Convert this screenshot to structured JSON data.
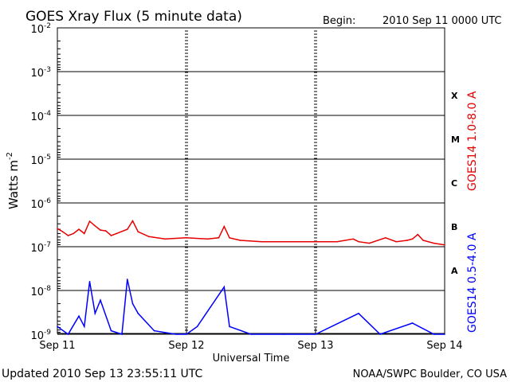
{
  "chart_data": {
    "type": "line",
    "title": "GOES Xray Flux (5 minute data)",
    "begin_label": "Begin:",
    "begin_value": "2010 Sep 11 0000 UTC",
    "xlabel": "Universal Time",
    "ylabel_main": "Watts m",
    "ylabel_exp": "-2",
    "y_scale": "log",
    "ylim": [
      8e-10,
      0.01
    ],
    "y_ticks": [
      {
        "exp": "-2",
        "value": 0.01
      },
      {
        "exp": "-3",
        "value": 0.001
      },
      {
        "exp": "-4",
        "value": 0.0001
      },
      {
        "exp": "-5",
        "value": 1e-05
      },
      {
        "exp": "-6",
        "value": 1e-06
      },
      {
        "exp": "-7",
        "value": 1e-07
      },
      {
        "exp": "-8",
        "value": 1e-08
      },
      {
        "exp": "-9",
        "value": 1e-09
      }
    ],
    "x_ticks": [
      "Sep 11",
      "Sep 12",
      "Sep 13",
      "Sep 14"
    ],
    "xlim": [
      "2010-09-11",
      "2010-09-14"
    ],
    "flare_classes": [
      {
        "label": "X",
        "value": 0.0003
      },
      {
        "label": "M",
        "value": 3e-05
      },
      {
        "label": "C",
        "value": 3e-06
      },
      {
        "label": "B",
        "value": 3e-07
      },
      {
        "label": "A",
        "value": 3e-08
      }
    ],
    "grid": true,
    "series": [
      {
        "name": "GOES14 1.0-8.0 A",
        "color": "#e60000",
        "points": [
          [
            "2010-09-11 00:00",
            2.6e-07
          ],
          [
            "2010-09-11 01:00",
            2.2e-07
          ],
          [
            "2010-09-11 02:00",
            1.8e-07
          ],
          [
            "2010-09-11 03:00",
            2e-07
          ],
          [
            "2010-09-11 04:00",
            2.5e-07
          ],
          [
            "2010-09-11 05:00",
            2e-07
          ],
          [
            "2010-09-11 06:00",
            3.8e-07
          ],
          [
            "2010-09-11 07:00",
            3e-07
          ],
          [
            "2010-09-11 08:00",
            2.4e-07
          ],
          [
            "2010-09-11 09:00",
            2.3e-07
          ],
          [
            "2010-09-11 10:00",
            1.8e-07
          ],
          [
            "2010-09-11 11:00",
            2e-07
          ],
          [
            "2010-09-11 13:00",
            2.5e-07
          ],
          [
            "2010-09-11 14:00",
            3.9e-07
          ],
          [
            "2010-09-11 15:00",
            2.2e-07
          ],
          [
            "2010-09-11 17:00",
            1.7e-07
          ],
          [
            "2010-09-11 20:00",
            1.5e-07
          ],
          [
            "2010-09-12 00:00",
            1.6e-07
          ],
          [
            "2010-09-12 04:00",
            1.5e-07
          ],
          [
            "2010-09-12 06:00",
            1.6e-07
          ],
          [
            "2010-09-12 07:00",
            2.9e-07
          ],
          [
            "2010-09-12 08:00",
            1.6e-07
          ],
          [
            "2010-09-12 10:00",
            1.4e-07
          ],
          [
            "2010-09-12 14:00",
            1.3e-07
          ],
          [
            "2010-09-12 18:00",
            1.3e-07
          ],
          [
            "2010-09-12 22:00",
            1.3e-07
          ],
          [
            "2010-09-13 01:00",
            1.3e-07
          ],
          [
            "2010-09-13 04:00",
            1.3e-07
          ],
          [
            "2010-09-13 07:00",
            1.5e-07
          ],
          [
            "2010-09-13 08:00",
            1.3e-07
          ],
          [
            "2010-09-13 10:00",
            1.2e-07
          ],
          [
            "2010-09-13 13:00",
            1.6e-07
          ],
          [
            "2010-09-13 15:00",
            1.3e-07
          ],
          [
            "2010-09-13 17:00",
            1.4e-07
          ],
          [
            "2010-09-13 18:00",
            1.5e-07
          ],
          [
            "2010-09-13 19:00",
            1.9e-07
          ],
          [
            "2010-09-13 20:00",
            1.4e-07
          ],
          [
            "2010-09-13 22:00",
            1.2e-07
          ],
          [
            "2010-09-14 00:00",
            1.1e-07
          ]
        ]
      },
      {
        "name": "GOES14 0.5-4.0 A",
        "color": "#0000ff",
        "points": [
          [
            "2010-09-11 00:00",
            1.5e-09
          ],
          [
            "2010-09-11 02:00",
            1e-09
          ],
          [
            "2010-09-11 04:00",
            2.6e-09
          ],
          [
            "2010-09-11 05:00",
            1.5e-09
          ],
          [
            "2010-09-11 06:00",
            1.6e-08
          ],
          [
            "2010-09-11 07:00",
            3e-09
          ],
          [
            "2010-09-11 08:00",
            6e-09
          ],
          [
            "2010-09-11 10:00",
            1.2e-09
          ],
          [
            "2010-09-11 12:00",
            1e-09
          ],
          [
            "2010-09-11 13:00",
            1.8e-08
          ],
          [
            "2010-09-11 14:00",
            5e-09
          ],
          [
            "2010-09-11 15:00",
            3e-09
          ],
          [
            "2010-09-11 18:00",
            1.2e-09
          ],
          [
            "2010-09-11 22:00",
            1e-09
          ],
          [
            "2010-09-12 00:00",
            1e-09
          ],
          [
            "2010-09-12 02:00",
            1.5e-09
          ],
          [
            "2010-09-12 07:00",
            1.2e-08
          ],
          [
            "2010-09-12 08:00",
            1.5e-09
          ],
          [
            "2010-09-12 12:00",
            1e-09
          ],
          [
            "2010-09-12 18:00",
            1e-09
          ],
          [
            "2010-09-13 00:00",
            1e-09
          ],
          [
            "2010-09-13 08:00",
            3e-09
          ],
          [
            "2010-09-13 12:00",
            1e-09
          ],
          [
            "2010-09-13 18:00",
            1.8e-09
          ],
          [
            "2010-09-13 22:00",
            1e-09
          ],
          [
            "2010-09-14 00:00",
            1e-09
          ]
        ]
      }
    ]
  },
  "footer": {
    "updated": "Updated 2010 Sep 13 23:55:11 UTC",
    "source": "NOAA/SWPC Boulder, CO USA"
  }
}
